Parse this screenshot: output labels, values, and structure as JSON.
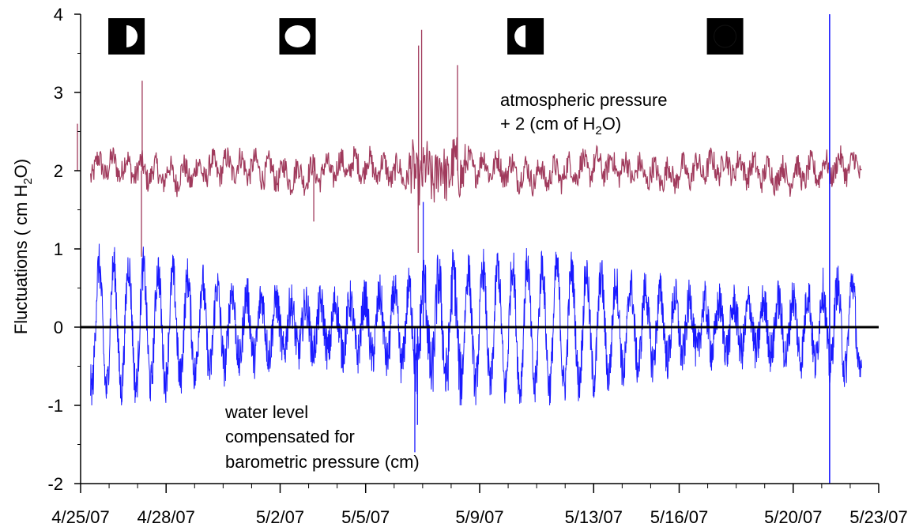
{
  "chart_data": {
    "type": "line",
    "title": "",
    "xlabel": "",
    "ylabel_parts": {
      "main": "Fluctuations ( cm H",
      "sub": "2",
      "tail": "O)"
    },
    "ylim": [
      -2,
      4
    ],
    "yticks": [
      -2,
      -1,
      0,
      1,
      2,
      3,
      4
    ],
    "xlim": [
      "2007-04-25",
      "2007-05-23"
    ],
    "xticks": [
      {
        "date": "2007-04-25",
        "label": "4/25/07"
      },
      {
        "date": "2007-04-28",
        "label": "4/28/07"
      },
      {
        "date": "2007-05-02",
        "label": "5/2/07"
      },
      {
        "date": "2007-05-05",
        "label": "5/5/07"
      },
      {
        "date": "2007-05-09",
        "label": "5/9/07"
      },
      {
        "date": "2007-05-13",
        "label": "5/13/07"
      },
      {
        "date": "2007-05-16",
        "label": "5/16/07"
      },
      {
        "date": "2007-05-20",
        "label": "5/20/07"
      },
      {
        "date": "2007-05-23",
        "label": "5/23/07"
      }
    ],
    "grid": false,
    "zero_line": true,
    "series": [
      {
        "name_lines": [
          "atmospheric pressure"
        ],
        "name_parts": {
          "pre": "+ 2 (cm of H",
          "sub": "2",
          "post": "O)"
        },
        "color": "#a03a5c",
        "baseline": 2.0,
        "range": [
          1.5,
          2.35
        ],
        "spikes": [
          {
            "date": "2007-04-25",
            "value": 2.6
          },
          {
            "date": "2007-04-27",
            "value": 3.15
          },
          {
            "date": "2007-04-27",
            "value": 0.9
          },
          {
            "date": "2007-05-03",
            "value": 1.35
          },
          {
            "date": "2007-05-07",
            "value": 3.8
          },
          {
            "date": "2007-05-07",
            "value": 3.6
          },
          {
            "date": "2007-05-07",
            "value": 0.95
          },
          {
            "date": "2007-05-08",
            "value": 3.35
          }
        ]
      },
      {
        "name_lines": [
          "water level",
          "compensated for",
          "barometric pressure (cm)"
        ],
        "color": "#1a1aff",
        "baseline": 0.0,
        "range": [
          -1.0,
          1.25
        ],
        "spikes": [
          {
            "date": "2007-05-07",
            "value": -1.6
          },
          {
            "date": "2007-05-07",
            "value": 1.6
          },
          {
            "date": "2007-05-07",
            "value": -1.25
          }
        ]
      }
    ],
    "event_line": {
      "date": "2007-05-21",
      "color": "#1a1aff"
    },
    "moon_phases": [
      {
        "date": "2007-04-26",
        "phase": "first-quarter"
      },
      {
        "date": "2007-05-02",
        "phase": "full-moon"
      },
      {
        "date": "2007-05-10",
        "phase": "last-quarter"
      },
      {
        "date": "2007-05-17",
        "phase": "new-moon"
      }
    ]
  }
}
